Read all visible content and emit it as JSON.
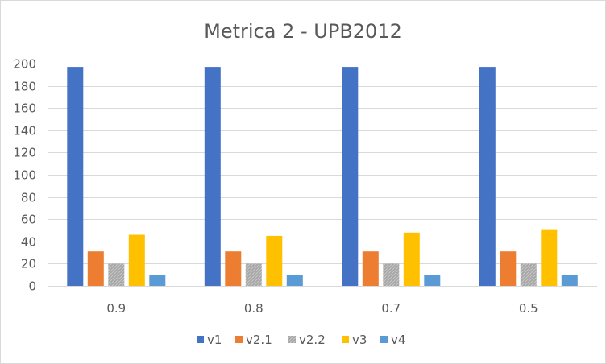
{
  "chart_data": {
    "type": "bar",
    "title": "Metrica 2 - UPB2012",
    "xlabel": "",
    "ylabel": "",
    "categories": [
      "0.9",
      "0.8",
      "0.7",
      "0.5"
    ],
    "ylim": [
      0,
      200
    ],
    "yticks": [
      0,
      20,
      40,
      60,
      80,
      100,
      120,
      140,
      160,
      180,
      200
    ],
    "grid": true,
    "legend_position": "bottom",
    "series": [
      {
        "name": "v1",
        "values": [
          197,
          197,
          197,
          197
        ],
        "color": "#4472c4",
        "pattern": "solid"
      },
      {
        "name": "v2.1",
        "values": [
          31,
          31,
          31,
          31
        ],
        "color": "#ed7d31",
        "pattern": "solid"
      },
      {
        "name": "v2.2",
        "values": [
          20,
          20,
          20,
          20
        ],
        "color": "#a5a5a5",
        "pattern": "hatched"
      },
      {
        "name": "v3",
        "values": [
          46,
          45,
          48,
          51
        ],
        "color": "#ffc000",
        "pattern": "solid"
      },
      {
        "name": "v4",
        "values": [
          10,
          10,
          10,
          10
        ],
        "color": "#5b9bd5",
        "pattern": "solid"
      }
    ]
  }
}
